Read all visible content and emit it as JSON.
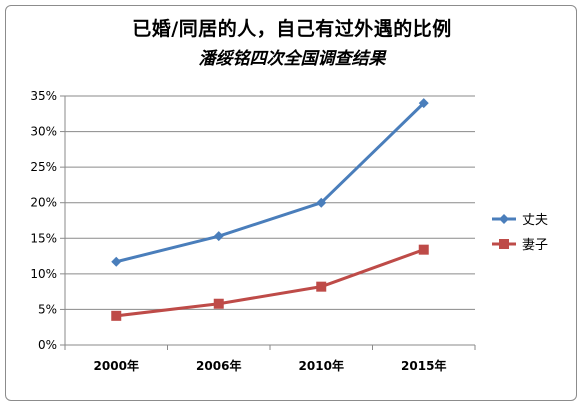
{
  "chart_data": {
    "type": "line",
    "title": "已婚/同居的人，自己有过外遇的比例",
    "subtitle": "潘绥铭四次全国调查结果",
    "categories": [
      "2000年",
      "2006年",
      "2010年",
      "2015年"
    ],
    "series": [
      {
        "name": "丈夫",
        "values": [
          11.7,
          15.3,
          20.0,
          34.0
        ],
        "color": "#4a7ebb",
        "marker": "diamond"
      },
      {
        "name": "妻子",
        "values": [
          4.1,
          5.8,
          8.2,
          13.4
        ],
        "color": "#be4b48",
        "marker": "square"
      }
    ],
    "yticks": [
      "0%",
      "5%",
      "10%",
      "15%",
      "20%",
      "25%",
      "30%",
      "35%"
    ],
    "ylim": [
      0,
      35
    ],
    "ystep": 5,
    "grid": true,
    "legend_position": "right"
  }
}
